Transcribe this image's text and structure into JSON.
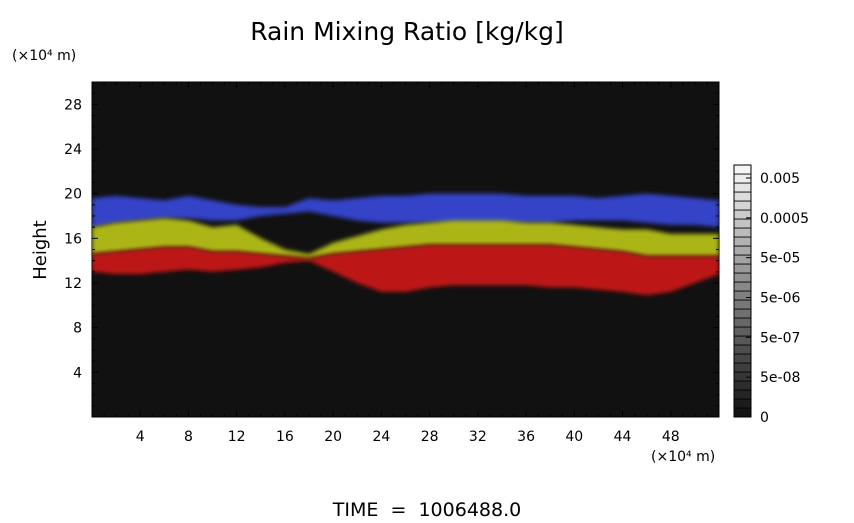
{
  "chart_data": {
    "type": "heatmap",
    "title": "Rain Mixing Ratio [kg/kg]",
    "ylabel": "Height",
    "y_unit": "(×10⁴ m)",
    "x_unit": "(×10⁴ m)",
    "xlim": [
      0,
      52
    ],
    "ylim": [
      0,
      30
    ],
    "x_ticks": [
      "4",
      "8",
      "12",
      "16",
      "20",
      "24",
      "28",
      "32",
      "36",
      "40",
      "44",
      "48"
    ],
    "y_ticks": [
      "4",
      "8",
      "12",
      "16",
      "20",
      "24",
      "28"
    ],
    "colorbar": {
      "labels": [
        "0",
        "5e-08",
        "5e-07",
        "5e-06",
        "5e-05",
        "0.0005",
        "0.005"
      ],
      "scale": "log"
    },
    "footer": "TIME  =  1006488.0",
    "background_color": "#111111",
    "layers": [
      {
        "color": "#3848d8",
        "x": [
          0,
          2,
          4,
          6,
          8,
          10,
          12,
          14,
          16,
          18,
          20,
          22,
          24,
          26,
          28,
          30,
          32,
          34,
          36,
          38,
          40,
          42,
          44,
          46,
          48,
          50,
          52
        ],
        "top": [
          19.6,
          19.8,
          19.6,
          19.4,
          19.8,
          19.4,
          19.0,
          18.8,
          18.8,
          19.6,
          19.4,
          19.6,
          19.8,
          19.8,
          20.0,
          20.0,
          20.0,
          20.0,
          19.8,
          19.8,
          19.8,
          19.6,
          19.8,
          20.0,
          19.8,
          19.6,
          19.4
        ],
        "bottom": [
          17.0,
          17.4,
          17.6,
          17.8,
          17.8,
          17.6,
          17.6,
          18.0,
          18.2,
          18.4,
          18.0,
          17.6,
          17.4,
          17.4,
          17.4,
          17.4,
          17.4,
          17.4,
          17.4,
          17.4,
          17.6,
          17.6,
          17.6,
          17.4,
          17.2,
          17.2,
          17.0
        ]
      },
      {
        "color": "#b8c418",
        "x": [
          0,
          2,
          4,
          6,
          8,
          10,
          12,
          14,
          16,
          18,
          20,
          22,
          24,
          26,
          28,
          30,
          32,
          34,
          36,
          38,
          40,
          42,
          44,
          46,
          48,
          50,
          52
        ],
        "top": [
          17.0,
          17.4,
          17.6,
          17.8,
          17.6,
          17.0,
          17.2,
          16.0,
          15.0,
          14.6,
          15.6,
          16.2,
          16.8,
          17.2,
          17.4,
          17.6,
          17.6,
          17.6,
          17.4,
          17.4,
          17.2,
          17.0,
          16.8,
          16.8,
          16.4,
          16.4,
          16.4
        ],
        "bottom": [
          14.6,
          14.8,
          15.0,
          15.2,
          15.2,
          14.8,
          14.8,
          14.6,
          14.4,
          14.2,
          14.6,
          14.8,
          15.0,
          15.2,
          15.4,
          15.4,
          15.4,
          15.4,
          15.4,
          15.4,
          15.2,
          15.0,
          14.8,
          14.4,
          14.4,
          14.4,
          14.4
        ]
      },
      {
        "color": "#cc1414",
        "x": [
          0,
          2,
          4,
          6,
          8,
          10,
          12,
          14,
          16,
          18,
          20,
          22,
          24,
          26,
          28,
          30,
          32,
          34,
          36,
          38,
          40,
          42,
          44,
          46,
          48,
          50,
          52
        ],
        "top": [
          14.6,
          14.8,
          15.0,
          15.2,
          15.2,
          14.8,
          14.8,
          14.6,
          14.4,
          14.2,
          14.6,
          14.8,
          15.0,
          15.2,
          15.4,
          15.4,
          15.4,
          15.4,
          15.4,
          15.4,
          15.2,
          15.0,
          14.8,
          14.4,
          14.4,
          14.4,
          14.4
        ],
        "bottom": [
          13.0,
          12.8,
          12.8,
          13.0,
          13.2,
          13.0,
          13.2,
          13.4,
          13.8,
          14.0,
          13.0,
          12.0,
          11.2,
          11.2,
          11.6,
          11.8,
          11.8,
          11.8,
          11.8,
          11.6,
          11.6,
          11.4,
          11.2,
          10.9,
          11.2,
          12.0,
          12.8
        ]
      }
    ]
  }
}
